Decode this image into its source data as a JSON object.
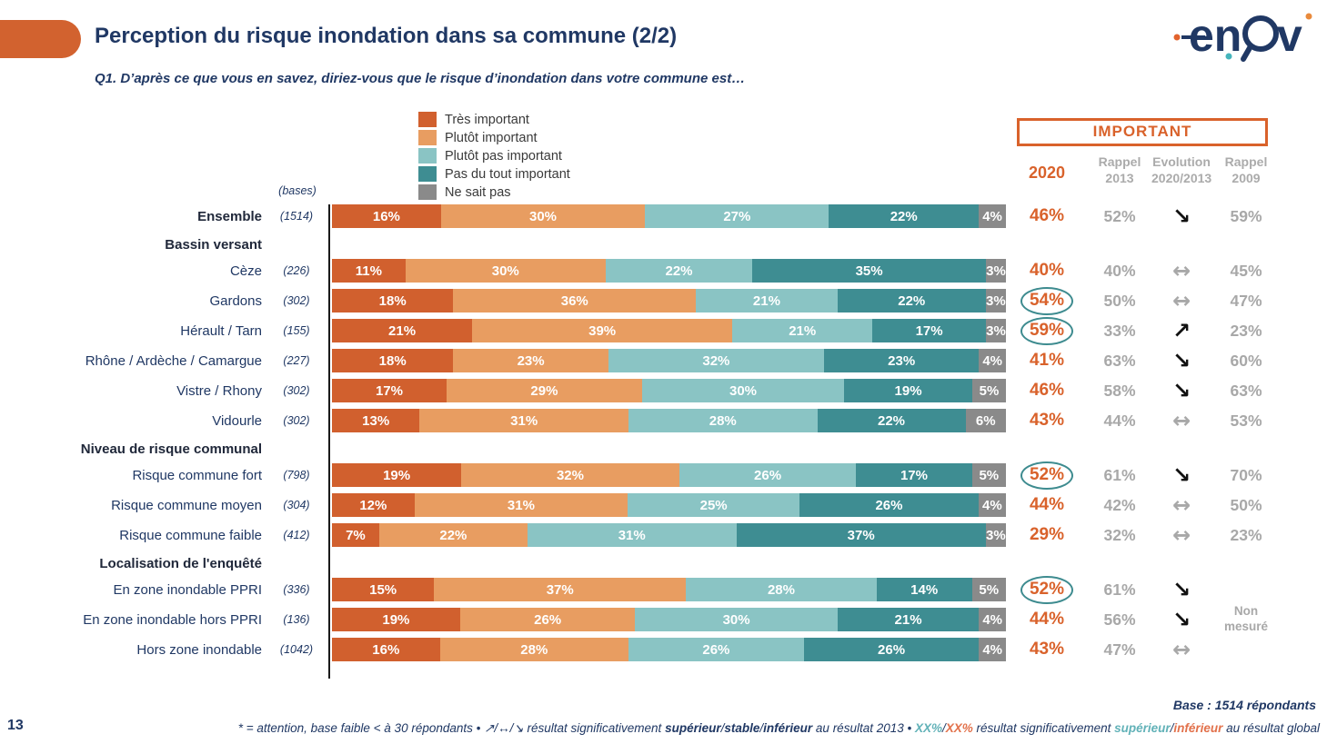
{
  "header": {
    "title": "Perception du risque inondation dans sa commune (2/2)",
    "question": "Q1. D’après ce que vous en savez, diriez-vous que le risque d’inondation dans votre commune est…",
    "logo_name": "enov-logo"
  },
  "columns": {
    "important_title": "IMPORTANT",
    "col_2020": "2020",
    "col_2013": "Rappel\n2013",
    "col_evolution": "Evolution\n2020/2013",
    "col_2009": "Rappel\n2009"
  },
  "bases_label": "(bases)",
  "legend": [
    {
      "label": "Très important",
      "color": "#D1602E"
    },
    {
      "label": "Plutôt important",
      "color": "#E89D61"
    },
    {
      "label": "Plutôt pas important",
      "color": "#8AC4C4"
    },
    {
      "label": "Pas du tout important",
      "color": "#3E8D92"
    },
    {
      "label": "Ne sait pas",
      "color": "#8A8A8A"
    }
  ],
  "chart_data": {
    "type": "bar",
    "stacked": true,
    "orientation": "horizontal",
    "series_labels": [
      "Très important",
      "Plutôt important",
      "Plutôt pas important",
      "Pas du tout important",
      "Ne sait pas"
    ],
    "unit": "%",
    "rows": [
      {
        "type": "row",
        "label": "Ensemble",
        "base": "(1514)",
        "bold": true,
        "values": [
          16,
          30,
          27,
          22,
          4
        ],
        "y2020": "46%",
        "circled": false,
        "y2013": "52%",
        "evo": "down",
        "y2009": "59%"
      },
      {
        "type": "group",
        "label": "Bassin versant"
      },
      {
        "type": "row",
        "label": "Cèze",
        "base": "(226)",
        "values": [
          11,
          30,
          22,
          35,
          3
        ],
        "y2020": "40%",
        "circled": false,
        "y2013": "40%",
        "evo": "stable",
        "y2009": "45%"
      },
      {
        "type": "row",
        "label": "Gardons",
        "base": "(302)",
        "values": [
          18,
          36,
          21,
          22,
          3
        ],
        "y2020": "54%",
        "circled": true,
        "y2013": "50%",
        "evo": "stable",
        "y2009": "47%"
      },
      {
        "type": "row",
        "label": "Hérault / Tarn",
        "base": "(155)",
        "values": [
          21,
          39,
          21,
          17,
          3
        ],
        "y2020": "59%",
        "circled": true,
        "y2013": "33%",
        "evo": "up",
        "y2009": "23%"
      },
      {
        "type": "row",
        "label": "Rhône / Ardèche / Camargue",
        "base": "(227)",
        "values": [
          18,
          23,
          32,
          23,
          4
        ],
        "y2020": "41%",
        "circled": false,
        "y2013": "63%",
        "evo": "down",
        "y2009": "60%"
      },
      {
        "type": "row",
        "label": "Vistre / Rhony",
        "base": "(302)",
        "values": [
          17,
          29,
          30,
          19,
          5
        ],
        "y2020": "46%",
        "circled": false,
        "y2013": "58%",
        "evo": "down",
        "y2009": "63%"
      },
      {
        "type": "row",
        "label": "Vidourle",
        "base": "(302)",
        "values": [
          13,
          31,
          28,
          22,
          6
        ],
        "y2020": "43%",
        "circled": false,
        "y2013": "44%",
        "evo": "stable",
        "y2009": "53%"
      },
      {
        "type": "group",
        "label": "Niveau de risque communal"
      },
      {
        "type": "row",
        "label": "Risque commune fort",
        "base": "(798)",
        "values": [
          19,
          32,
          26,
          17,
          5
        ],
        "y2020": "52%",
        "circled": true,
        "y2013": "61%",
        "evo": "down",
        "y2009": "70%"
      },
      {
        "type": "row",
        "label": "Risque commune moyen",
        "base": "(304)",
        "values": [
          12,
          31,
          25,
          26,
          4
        ],
        "y2020": "44%",
        "circled": false,
        "y2013": "42%",
        "evo": "stable",
        "y2009": "50%"
      },
      {
        "type": "row",
        "label": "Risque commune faible",
        "base": "(412)",
        "values": [
          7,
          22,
          31,
          37,
          3
        ],
        "y2020": "29%",
        "circled": false,
        "y2013": "32%",
        "evo": "stable",
        "y2009": "23%"
      },
      {
        "type": "group",
        "label": "Localisation de l'enquêté"
      },
      {
        "type": "row",
        "label": "En zone inondable PPRI",
        "base": "(336)",
        "values": [
          15,
          37,
          28,
          14,
          5
        ],
        "y2020": "52%",
        "circled": true,
        "y2013": "61%",
        "evo": "down",
        "y2009": ""
      },
      {
        "type": "row",
        "label": "En zone inondable hors PPRI",
        "base": "(136)",
        "values": [
          19,
          26,
          30,
          21,
          4
        ],
        "y2020": "44%",
        "circled": false,
        "y2013": "56%",
        "evo": "down",
        "y2009": "Non mesuré"
      },
      {
        "type": "row",
        "label": "Hors zone inondable",
        "base": "(1042)",
        "values": [
          16,
          28,
          26,
          26,
          4
        ],
        "y2020": "43%",
        "circled": false,
        "y2013": "47%",
        "evo": "stable",
        "y2009": ""
      }
    ]
  },
  "footer": {
    "base_total": "Base : 1514 répondants",
    "page_number": "13",
    "note_parts": [
      {
        "t": "* = attention, base faible < à 30 répondants • ",
        "s": ""
      },
      {
        "t": "↗/↔/↘",
        "s": ""
      },
      {
        "t": " résultat significativement ",
        "s": ""
      },
      {
        "t": "supérieur",
        "s": "b"
      },
      {
        "t": "/",
        "s": ""
      },
      {
        "t": "stable",
        "s": "b"
      },
      {
        "t": "/",
        "s": ""
      },
      {
        "t": "inférieur",
        "s": "b"
      },
      {
        "t": " au résultat 2013 • ",
        "s": ""
      },
      {
        "t": "XX%",
        "s": "teal"
      },
      {
        "t": "/",
        "s": ""
      },
      {
        "t": "XX%",
        "s": "salmon"
      },
      {
        "t": " résultat significativement ",
        "s": ""
      },
      {
        "t": "supérieur",
        "s": "teal"
      },
      {
        "t": "/",
        "s": ""
      },
      {
        "t": "inférieur",
        "s": "salmon"
      },
      {
        "t": " au résultat global",
        "s": ""
      }
    ]
  }
}
